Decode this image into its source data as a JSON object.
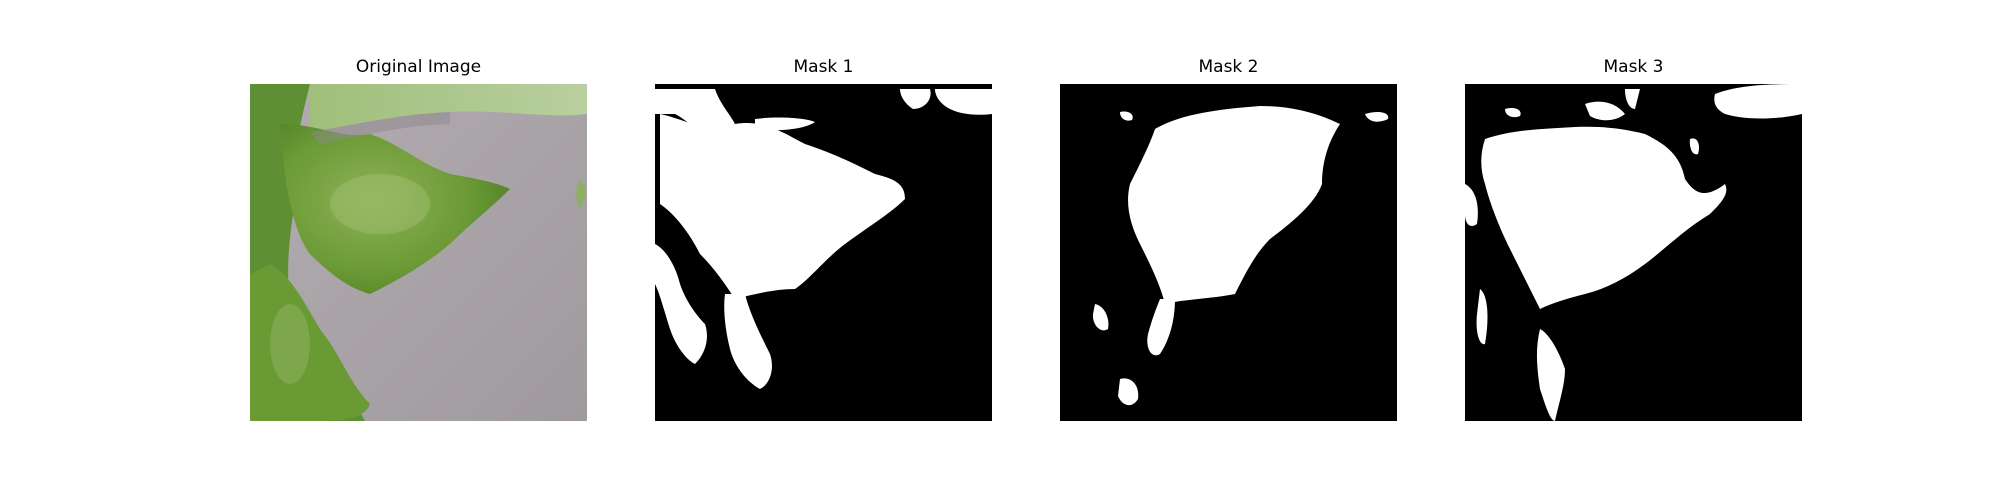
{
  "figure": {
    "panels": [
      {
        "title": "Original Image"
      },
      {
        "title": "Mask 1"
      },
      {
        "title": "Mask 2"
      },
      {
        "title": "Mask 3"
      }
    ]
  },
  "colors": {
    "background": "#ffffff",
    "mask_background": "#000000",
    "mask_foreground": "#ffffff",
    "leaf_green": "#7fa83d",
    "leaf_dark": "#4d7a2a",
    "wall_gray": "#a8a3a6"
  }
}
